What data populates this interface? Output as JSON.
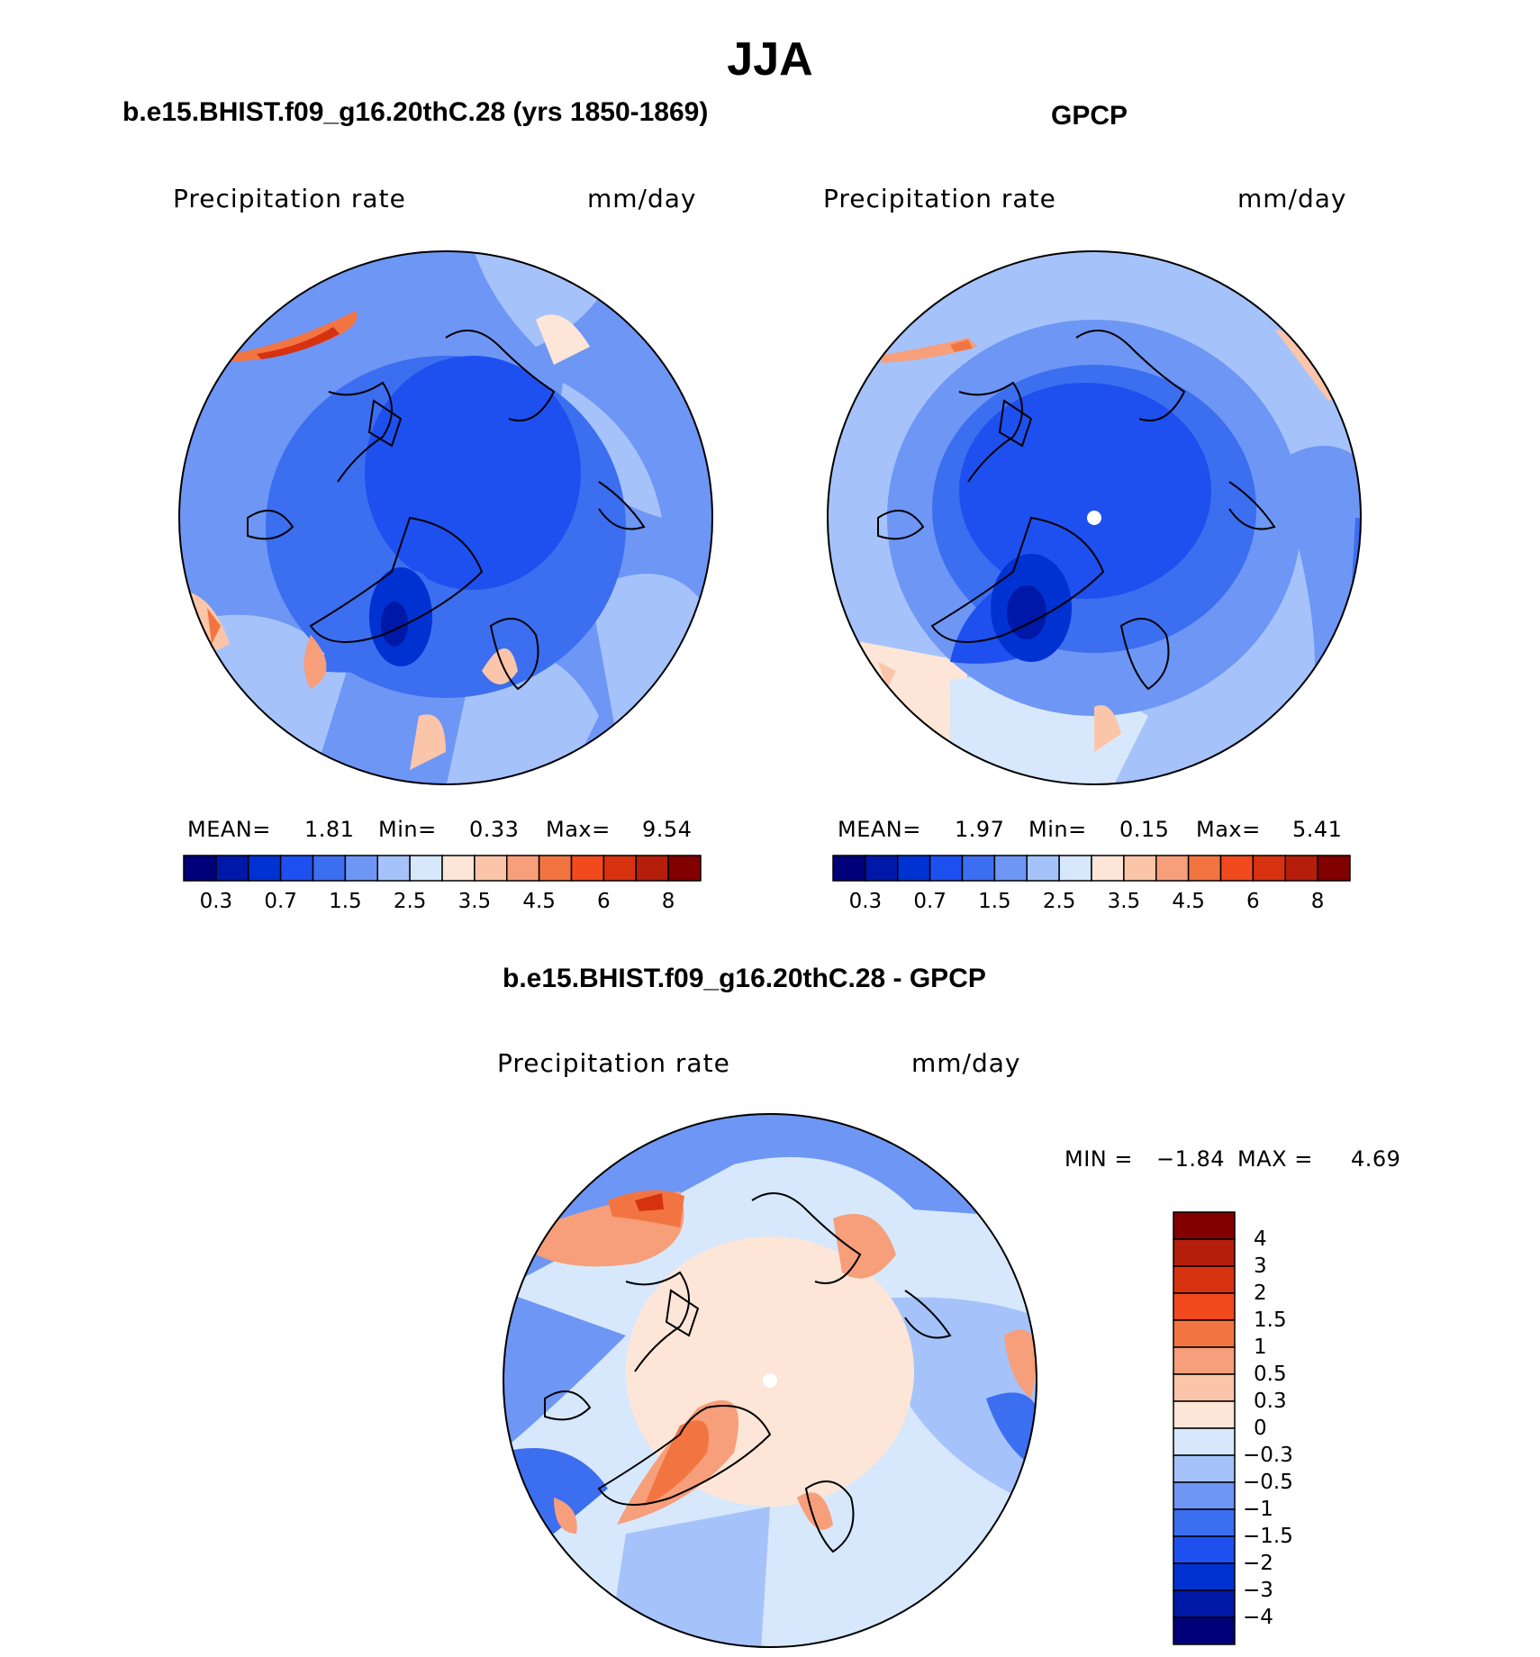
{
  "title": "JJA",
  "panels": [
    {
      "id": "model",
      "title": "b.e15.BHIST.f09_g16.20thC.28 (yrs 1850-1869)",
      "left_label": "Precipitation rate",
      "right_label": "mm/day",
      "stats": {
        "mean_label": "MEAN=",
        "mean": "1.81",
        "min_label": "Min=",
        "min": "0.33",
        "max_label": "Max=",
        "max": "9.54"
      }
    },
    {
      "id": "obs",
      "title": "GPCP",
      "left_label": "Precipitation rate",
      "right_label": "mm/day",
      "stats": {
        "mean_label": "MEAN=",
        "mean": "1.97",
        "min_label": "Min=",
        "min": "0.15",
        "max_label": "Max=",
        "max": "5.41"
      }
    },
    {
      "id": "diff",
      "title": "b.e15.BHIST.f09_g16.20thC.28 - GPCP",
      "left_label": "Precipitation rate",
      "right_label": "mm/day",
      "stats": {
        "min_label": "MIN =",
        "min": "−1.84",
        "max_label": "MAX =",
        "max": "4.69"
      }
    }
  ],
  "abs_colorbar": {
    "colors": [
      "#00007a",
      "#0018a8",
      "#0032d2",
      "#1e50f0",
      "#3c6ef0",
      "#6e96f5",
      "#a5c3fa",
      "#d7e8fc",
      "#fde6d7",
      "#fbc5aa",
      "#f79e7b",
      "#f27541",
      "#f04a1e",
      "#d73210",
      "#b41e0a",
      "#820000"
    ],
    "labels": [
      "0.3",
      "0.7",
      "1.5",
      "2.5",
      "3.5",
      "4.5",
      "6",
      "8"
    ]
  },
  "diff_colorbar": {
    "colors": [
      "#820000",
      "#b41e0a",
      "#d73210",
      "#f04a1e",
      "#f27541",
      "#f79e7b",
      "#fbc5aa",
      "#fde6d7",
      "#d7e8fc",
      "#a5c3fa",
      "#6e96f5",
      "#3c6ef0",
      "#1e50f0",
      "#0032d2",
      "#0018a8",
      "#00007a"
    ],
    "labels": [
      "4",
      "3",
      "2",
      "1.5",
      "1",
      "0.5",
      "0.3",
      "0",
      "−0.3",
      "−0.5",
      "−1",
      "−1.5",
      "−2",
      "−3",
      "−4"
    ]
  }
}
